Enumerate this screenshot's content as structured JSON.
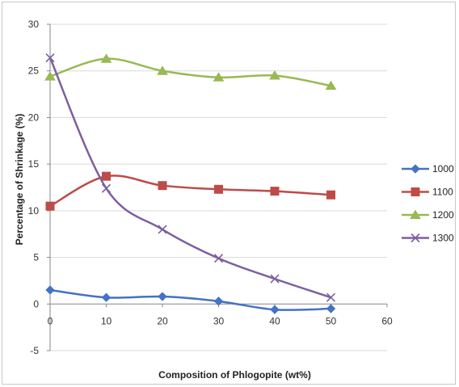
{
  "chart_data": {
    "type": "line",
    "smooth": true,
    "xlabel": "Composition of Phlogopite (wt%)",
    "ylabel": "Percentage of Shrinkage (%)",
    "xlim": [
      0,
      60
    ],
    "ylim": [
      -5,
      30
    ],
    "xticks": [
      0,
      10,
      20,
      30,
      40,
      50,
      60
    ],
    "yticks": [
      -5,
      0,
      5,
      10,
      15,
      20,
      25,
      30
    ],
    "grid": "horizontal",
    "legend_position": "right",
    "x": [
      0,
      10,
      20,
      30,
      40,
      50
    ],
    "series": [
      {
        "name": "1000",
        "values": [
          1.5,
          0.7,
          0.8,
          0.3,
          -0.6,
          -0.5
        ],
        "color": "#4472c4",
        "marker": "diamond"
      },
      {
        "name": "1100",
        "values": [
          10.5,
          13.7,
          12.7,
          12.3,
          12.1,
          11.7
        ],
        "color": "#be4b48",
        "marker": "square"
      },
      {
        "name": "1200",
        "values": [
          24.4,
          26.3,
          25.0,
          24.3,
          24.5,
          23.4
        ],
        "color": "#98b954",
        "marker": "triangle"
      },
      {
        "name": "1300",
        "values": [
          26.4,
          12.4,
          8.0,
          4.9,
          2.7,
          0.7
        ],
        "color": "#7d5fa0",
        "marker": "x"
      }
    ]
  }
}
